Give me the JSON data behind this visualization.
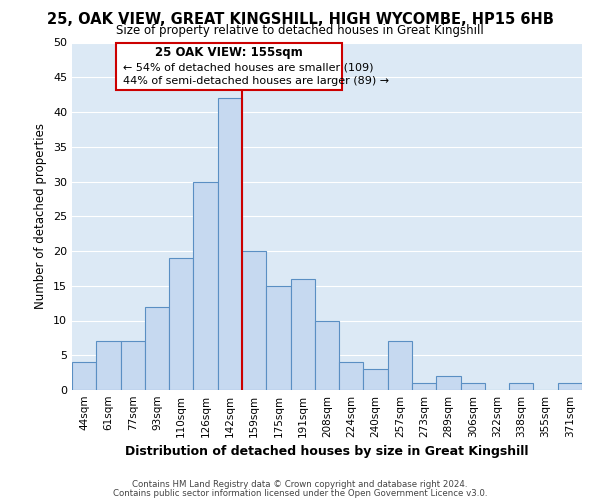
{
  "title": "25, OAK VIEW, GREAT KINGSHILL, HIGH WYCOMBE, HP15 6HB",
  "subtitle": "Size of property relative to detached houses in Great Kingshill",
  "xlabel": "Distribution of detached houses by size in Great Kingshill",
  "ylabel": "Number of detached properties",
  "bar_labels": [
    "44sqm",
    "61sqm",
    "77sqm",
    "93sqm",
    "110sqm",
    "126sqm",
    "142sqm",
    "159sqm",
    "175sqm",
    "191sqm",
    "208sqm",
    "224sqm",
    "240sqm",
    "257sqm",
    "273sqm",
    "289sqm",
    "306sqm",
    "322sqm",
    "338sqm",
    "355sqm",
    "371sqm"
  ],
  "bar_values": [
    4,
    7,
    7,
    12,
    19,
    30,
    42,
    20,
    15,
    16,
    10,
    4,
    3,
    7,
    1,
    2,
    1,
    0,
    1,
    0,
    1
  ],
  "bar_color": "#c6d9f0",
  "bar_edge_color": "#5a8fc3",
  "vline_x_index": 7,
  "vline_color": "#cc0000",
  "annotation_title": "25 OAK VIEW: 155sqm",
  "annotation_line1": "← 54% of detached houses are smaller (109)",
  "annotation_line2": "44% of semi-detached houses are larger (89) →",
  "annotation_box_color": "#ffffff",
  "annotation_box_edge": "#cc0000",
  "ylim": [
    0,
    50
  ],
  "yticks": [
    0,
    5,
    10,
    15,
    20,
    25,
    30,
    35,
    40,
    45,
    50
  ],
  "footer1": "Contains HM Land Registry data © Crown copyright and database right 2024.",
  "footer2": "Contains public sector information licensed under the Open Government Licence v3.0.",
  "bg_color": "#dce9f5"
}
